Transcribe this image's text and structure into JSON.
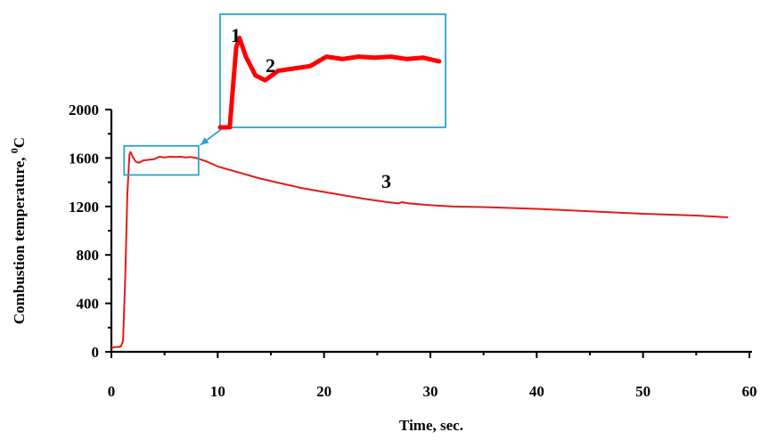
{
  "chart_data": {
    "type": "line",
    "xlabel": "Time, sec.",
    "ylabel_main": "Combustion temperature, ",
    "ylabel_sup": "0",
    "ylabel_unit": "C",
    "xlim": [
      0,
      60
    ],
    "ylim": [
      0,
      2000
    ],
    "xticks": [
      0,
      10,
      20,
      30,
      40,
      50,
      60
    ],
    "yticks": [
      0,
      400,
      800,
      1200,
      1600,
      2000
    ],
    "grid": false,
    "color": "#e31a1a",
    "series": [
      {
        "x": [
          0,
          0.3,
          0.6,
          0.9,
          1.1,
          1.3,
          1.5,
          1.7,
          1.8,
          2.0,
          2.3,
          2.6,
          3.0,
          3.5,
          4.0,
          4.5,
          5.0,
          5.5,
          6.0,
          6.5,
          7.0,
          7.5,
          8.0,
          9,
          10,
          12,
          14,
          16,
          18,
          20,
          22,
          24,
          26,
          27,
          27.3,
          28,
          30,
          32,
          35,
          40,
          45,
          50,
          55,
          58
        ],
        "y": [
          30,
          40,
          40,
          45,
          90,
          600,
          1300,
          1630,
          1650,
          1610,
          1570,
          1560,
          1580,
          1585,
          1590,
          1610,
          1605,
          1610,
          1608,
          1610,
          1605,
          1608,
          1600,
          1570,
          1530,
          1480,
          1430,
          1390,
          1350,
          1320,
          1290,
          1260,
          1235,
          1225,
          1235,
          1225,
          1210,
          1200,
          1195,
          1180,
          1160,
          1140,
          1125,
          1110
        ]
      }
    ],
    "zoom_region": {
      "xlim": [
        1.2,
        8.2
      ],
      "ylim": [
        1460,
        1700
      ]
    },
    "annotations": [
      {
        "label": "1",
        "x": 1.7,
        "y": 1650
      },
      {
        "label": "2",
        "x": 2.7,
        "y": 1565
      },
      {
        "label": "3",
        "x": 26,
        "y": 1235
      }
    ]
  }
}
